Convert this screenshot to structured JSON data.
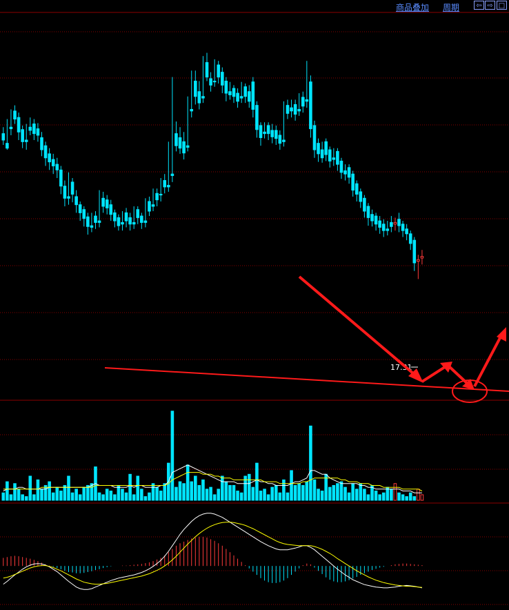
{
  "toolbar": {
    "overlay_label": "商品叠加",
    "period_label": "周期",
    "nav_left": "⇦",
    "nav_right": "⇨",
    "nav_max": "□"
  },
  "colors": {
    "background": "#000000",
    "grid": "#8b0000",
    "up": "#ff3b3b",
    "down": "#00e5ff",
    "ma_white": "#ffffff",
    "ma_yellow": "#ffff00",
    "annotation": "#ff1a1a"
  },
  "chart_data": [
    {
      "type": "candlestick",
      "price_labels": [
        {
          "x": 606,
          "value": 17.31
        }
      ],
      "ylim": [
        16.9,
        21.7
      ],
      "candles": [
        [
          20.2,
          20.28,
          20.12,
          20.06
        ],
        [
          20.08,
          20.38,
          20.02,
          20.0
        ],
        [
          20.28,
          20.5,
          20.26,
          20.18
        ],
        [
          20.48,
          20.55,
          20.38,
          20.32
        ],
        [
          20.4,
          20.46,
          20.22,
          20.12
        ],
        [
          20.25,
          20.3,
          20.1,
          20.02
        ],
        [
          20.12,
          20.32,
          20.1,
          20.0
        ],
        [
          20.28,
          20.4,
          20.24,
          20.18
        ],
        [
          20.32,
          20.38,
          20.2,
          20.12
        ],
        [
          20.26,
          20.33,
          20.18,
          20.1
        ],
        [
          20.15,
          20.22,
          20.0,
          19.92
        ],
        [
          20.05,
          20.1,
          19.9,
          19.8
        ],
        [
          19.95,
          20.02,
          19.85,
          19.75
        ],
        [
          19.88,
          19.95,
          19.8,
          19.7
        ],
        [
          19.82,
          19.9,
          19.75,
          19.65
        ],
        [
          19.75,
          19.8,
          19.55,
          19.45
        ],
        [
          19.55,
          19.62,
          19.4,
          19.3
        ],
        [
          19.42,
          19.72,
          19.4,
          19.32
        ],
        [
          19.6,
          19.65,
          19.45,
          19.35
        ],
        [
          19.42,
          19.5,
          19.32,
          19.22
        ],
        [
          19.32,
          19.36,
          19.22,
          19.12
        ],
        [
          19.26,
          19.3,
          19.15,
          19.05
        ],
        [
          19.17,
          19.22,
          19.05,
          18.95
        ],
        [
          19.06,
          19.22,
          19.04,
          18.98
        ],
        [
          19.18,
          19.24,
          19.1,
          19.02
        ],
        [
          19.12,
          19.5,
          19.1,
          19.04
        ],
        [
          19.4,
          19.48,
          19.3,
          19.22
        ],
        [
          19.38,
          19.44,
          19.28,
          19.2
        ],
        [
          19.32,
          19.38,
          19.2,
          19.12
        ],
        [
          19.22,
          19.26,
          19.12,
          19.04
        ],
        [
          19.16,
          19.2,
          19.06,
          19.0
        ],
        [
          19.1,
          19.24,
          19.08,
          19.0
        ],
        [
          19.22,
          19.28,
          19.12,
          19.04
        ],
        [
          19.16,
          19.22,
          19.08,
          19.0
        ],
        [
          19.1,
          19.3,
          19.08,
          19.02
        ],
        [
          19.26,
          19.3,
          19.16,
          19.08
        ],
        [
          19.18,
          19.22,
          19.1,
          19.02
        ],
        [
          19.12,
          19.4,
          19.1,
          19.04
        ],
        [
          19.36,
          19.42,
          19.24,
          19.18
        ],
        [
          19.32,
          19.52,
          19.3,
          19.24
        ],
        [
          19.46,
          19.52,
          19.38,
          19.3
        ],
        [
          19.45,
          19.65,
          19.44,
          19.36
        ],
        [
          19.62,
          19.7,
          19.54,
          19.46
        ],
        [
          19.56,
          20.1,
          19.54,
          19.48
        ],
        [
          19.7,
          20.9,
          19.68,
          19.6
        ],
        [
          20.2,
          20.35,
          20.05,
          19.98
        ],
        [
          20.15,
          20.28,
          20.02,
          19.95
        ],
        [
          20.1,
          20.22,
          19.96,
          19.88
        ],
        [
          20.05,
          20.66,
          20.03,
          19.98
        ],
        [
          20.5,
          20.98,
          20.48,
          20.4
        ],
        [
          20.85,
          20.98,
          20.66,
          20.56
        ],
        [
          20.72,
          20.85,
          20.58,
          20.5
        ],
        [
          20.66,
          21.16,
          20.64,
          20.58
        ],
        [
          21.08,
          21.2,
          20.9,
          20.85
        ],
        [
          20.88,
          20.96,
          20.8,
          20.72
        ],
        [
          20.85,
          21.12,
          20.84,
          20.78
        ],
        [
          21.05,
          21.1,
          20.9,
          20.82
        ],
        [
          20.96,
          21.02,
          20.8,
          20.7
        ],
        [
          20.85,
          20.9,
          20.7,
          20.6
        ],
        [
          20.72,
          20.84,
          20.68,
          20.62
        ],
        [
          20.76,
          20.8,
          20.66,
          20.58
        ],
        [
          20.7,
          20.76,
          20.6,
          20.52
        ],
        [
          20.66,
          20.84,
          20.64,
          20.58
        ],
        [
          20.78,
          20.82,
          20.66,
          20.58
        ],
        [
          20.72,
          20.8,
          20.6,
          20.52
        ],
        [
          20.84,
          20.9,
          20.5,
          20.4
        ],
        [
          20.55,
          20.6,
          20.25,
          20.15
        ],
        [
          20.3,
          20.34,
          20.15,
          20.05
        ],
        [
          20.22,
          20.34,
          20.2,
          20.14
        ],
        [
          20.3,
          20.34,
          20.2,
          20.12
        ],
        [
          20.24,
          20.32,
          20.16,
          20.08
        ],
        [
          20.24,
          20.3,
          20.14,
          20.06
        ],
        [
          20.18,
          20.24,
          20.08,
          20.0
        ],
        [
          20.12,
          20.6,
          20.1,
          20.04
        ],
        [
          20.55,
          20.62,
          20.45,
          20.38
        ],
        [
          20.52,
          20.62,
          20.48,
          20.4
        ],
        [
          20.56,
          20.62,
          20.44,
          20.36
        ],
        [
          20.5,
          20.7,
          20.48,
          20.42
        ],
        [
          20.65,
          20.72,
          20.54,
          20.46
        ],
        [
          20.62,
          21.1,
          20.6,
          20.52
        ],
        [
          20.84,
          20.92,
          20.26,
          20.15
        ],
        [
          20.3,
          20.36,
          20.0,
          19.9
        ],
        [
          20.08,
          20.14,
          19.95,
          19.85
        ],
        [
          20.0,
          20.1,
          19.9,
          19.84
        ],
        [
          20.1,
          20.14,
          19.94,
          19.86
        ],
        [
          20.0,
          20.04,
          19.86,
          19.78
        ],
        [
          19.9,
          20.02,
          19.88,
          19.8
        ],
        [
          19.98,
          20.02,
          19.82,
          19.74
        ],
        [
          19.86,
          19.9,
          19.72,
          19.64
        ],
        [
          19.74,
          19.82,
          19.7,
          19.62
        ],
        [
          19.78,
          19.82,
          19.66,
          19.58
        ],
        [
          19.7,
          19.74,
          19.5,
          19.42
        ],
        [
          19.58,
          19.62,
          19.45,
          19.36
        ],
        [
          19.48,
          19.52,
          19.36,
          19.28
        ],
        [
          19.4,
          19.44,
          19.24,
          19.16
        ],
        [
          19.3,
          19.34,
          19.16,
          19.06
        ],
        [
          19.2,
          19.26,
          19.12,
          19.05
        ],
        [
          19.18,
          19.22,
          19.08,
          19.0
        ],
        [
          19.12,
          19.18,
          19.04,
          18.96
        ],
        [
          19.08,
          19.14,
          19.0,
          18.92
        ],
        [
          19.02,
          19.12,
          19.0,
          18.94
        ],
        [
          19.1,
          19.18,
          19.05,
          18.98
        ],
        [
          19.08,
          19.16,
          19.1,
          19.0
        ],
        [
          19.14,
          19.22,
          19.06,
          18.98
        ],
        [
          19.08,
          19.12,
          19.0,
          18.92
        ],
        [
          19.02,
          19.08,
          18.96,
          18.88
        ],
        [
          18.96,
          19.0,
          18.84,
          18.76
        ],
        [
          18.88,
          18.92,
          18.6,
          18.5
        ],
        [
          18.62,
          18.7,
          18.64,
          18.4
        ],
        [
          18.66,
          18.76,
          18.68,
          18.58
        ]
      ]
    },
    {
      "type": "bar",
      "volumes": [
        4,
        10,
        3,
        9,
        6,
        3,
        2,
        13,
        3,
        11,
        6,
        8,
        10,
        4,
        7,
        5,
        8,
        13,
        4,
        6,
        3,
        7,
        8,
        9,
        18,
        4,
        3,
        6,
        5,
        3,
        8,
        6,
        4,
        14,
        3,
        13,
        6,
        2,
        4,
        9,
        7,
        5,
        9,
        20,
        48,
        7,
        10,
        9,
        19,
        10,
        13,
        8,
        11,
        6,
        7,
        3,
        6,
        13,
        10,
        8,
        8,
        5,
        4,
        13,
        14,
        7,
        20,
        5,
        6,
        3,
        7,
        8,
        4,
        11,
        4,
        16,
        8,
        9,
        8,
        10,
        40,
        11,
        6,
        5,
        14,
        7,
        8,
        9,
        10,
        7,
        4,
        9,
        6,
        9,
        6,
        3,
        8,
        5,
        3,
        4,
        7,
        6,
        9,
        4,
        3,
        2,
        4,
        2,
        6,
        3
      ],
      "ma_white": [
        5,
        6,
        6,
        6,
        7,
        7,
        6,
        6,
        6,
        6,
        6,
        6,
        7,
        7,
        7,
        7,
        7,
        7,
        7,
        7,
        7,
        7,
        7,
        8,
        9,
        8,
        8,
        8,
        8,
        7,
        7,
        7,
        7,
        8,
        7,
        8,
        8,
        7,
        7,
        7,
        7,
        8,
        8,
        10,
        15,
        16,
        17,
        18,
        19,
        18,
        17,
        16,
        15,
        14,
        13,
        12,
        11,
        10,
        10,
        10,
        10,
        9,
        9,
        9,
        9,
        10,
        11,
        10,
        10,
        9,
        9,
        8,
        8,
        8,
        8,
        9,
        10,
        10,
        11,
        12,
        16,
        16,
        15,
        14,
        14,
        12,
        11,
        10,
        9,
        9,
        9,
        9,
        9,
        8,
        8,
        7,
        7,
        6,
        6,
        6,
        6,
        6,
        6,
        6,
        5,
        5,
        5,
        4,
        4,
        4
      ],
      "ma_yellow": [
        6,
        6,
        6,
        6,
        6,
        6,
        6,
        6,
        6,
        6,
        7,
        7,
        7,
        7,
        7,
        7,
        7,
        7,
        7,
        7,
        7,
        7,
        7,
        7,
        8,
        8,
        8,
        8,
        8,
        8,
        8,
        8,
        8,
        8,
        8,
        8,
        8,
        8,
        8,
        8,
        8,
        8,
        8,
        9,
        11,
        12,
        13,
        14,
        15,
        15,
        15,
        15,
        14,
        14,
        14,
        13,
        13,
        12,
        12,
        12,
        11,
        11,
        11,
        11,
        11,
        11,
        11,
        11,
        10,
        10,
        10,
        10,
        9,
        9,
        9,
        9,
        9,
        9,
        10,
        10,
        11,
        12,
        12,
        12,
        12,
        12,
        12,
        12,
        11,
        11,
        10,
        10,
        10,
        9,
        9,
        9,
        8,
        8,
        8,
        7,
        7,
        7,
        7,
        7,
        6,
        6,
        6,
        6,
        6,
        5
      ],
      "ylim": [
        0,
        52
      ]
    },
    {
      "type": "macd",
      "hist": [
        0.2,
        0.22,
        0.24,
        0.25,
        0.24,
        0.22,
        0.2,
        0.18,
        0.15,
        0.12,
        0.08,
        0.04,
        0.01,
        -0.02,
        -0.05,
        -0.08,
        -0.12,
        -0.15,
        -0.16,
        -0.18,
        -0.18,
        -0.17,
        -0.15,
        -0.13,
        -0.1,
        -0.08,
        -0.05,
        -0.03,
        -0.01,
        0.0,
        0.0,
        0.01,
        0.01,
        0.02,
        0.03,
        0.04,
        0.05,
        0.07,
        0.09,
        0.12,
        0.16,
        0.2,
        0.26,
        0.34,
        0.42,
        0.5,
        0.56,
        0.6,
        0.64,
        0.68,
        0.7,
        0.72,
        0.72,
        0.7,
        0.66,
        0.62,
        0.56,
        0.5,
        0.42,
        0.34,
        0.26,
        0.18,
        0.1,
        0.02,
        -0.06,
        -0.14,
        -0.22,
        -0.3,
        -0.36,
        -0.4,
        -0.42,
        -0.42,
        -0.4,
        -0.36,
        -0.3,
        -0.22,
        -0.14,
        -0.06,
        0.02,
        0.06,
        0.04,
        -0.04,
        -0.12,
        -0.2,
        -0.28,
        -0.34,
        -0.38,
        -0.4,
        -0.4,
        -0.38,
        -0.35,
        -0.31,
        -0.27,
        -0.22,
        -0.18,
        -0.14,
        -0.1,
        -0.07,
        -0.04,
        -0.02,
        0.0,
        0.02,
        0.04,
        0.05,
        0.06,
        0.06,
        0.05,
        0.04,
        0.03,
        0.02
      ],
      "dif": [
        -0.45,
        -0.38,
        -0.3,
        -0.22,
        -0.15,
        -0.08,
        -0.02,
        0.02,
        0.05,
        0.06,
        0.05,
        0.02,
        -0.02,
        -0.08,
        -0.14,
        -0.22,
        -0.3,
        -0.38,
        -0.45,
        -0.52,
        -0.56,
        -0.58,
        -0.58,
        -0.56,
        -0.52,
        -0.48,
        -0.44,
        -0.4,
        -0.36,
        -0.33,
        -0.3,
        -0.28,
        -0.26,
        -0.24,
        -0.22,
        -0.19,
        -0.16,
        -0.12,
        -0.07,
        -0.01,
        0.06,
        0.14,
        0.24,
        0.36,
        0.5,
        0.64,
        0.78,
        0.9,
        1.0,
        1.1,
        1.18,
        1.24,
        1.28,
        1.3,
        1.3,
        1.28,
        1.24,
        1.2,
        1.14,
        1.08,
        1.02,
        0.96,
        0.9,
        0.84,
        0.78,
        0.72,
        0.66,
        0.6,
        0.55,
        0.5,
        0.46,
        0.42,
        0.4,
        0.4,
        0.4,
        0.42,
        0.44,
        0.47,
        0.5,
        0.5,
        0.46,
        0.4,
        0.32,
        0.24,
        0.16,
        0.08,
        0.0,
        -0.08,
        -0.15,
        -0.22,
        -0.28,
        -0.34,
        -0.38,
        -0.42,
        -0.46,
        -0.48,
        -0.5,
        -0.52,
        -0.53,
        -0.54,
        -0.54,
        -0.53,
        -0.52,
        -0.5,
        -0.49,
        -0.48,
        -0.49,
        -0.5,
        -0.52,
        -0.54
      ],
      "dea": [
        -0.3,
        -0.28,
        -0.25,
        -0.21,
        -0.17,
        -0.13,
        -0.09,
        -0.05,
        -0.02,
        0.0,
        0.01,
        0.01,
        -0.01,
        -0.04,
        -0.08,
        -0.12,
        -0.17,
        -0.22,
        -0.27,
        -0.32,
        -0.36,
        -0.4,
        -0.42,
        -0.44,
        -0.45,
        -0.45,
        -0.44,
        -0.43,
        -0.41,
        -0.39,
        -0.37,
        -0.35,
        -0.33,
        -0.31,
        -0.29,
        -0.27,
        -0.25,
        -0.22,
        -0.19,
        -0.15,
        -0.11,
        -0.06,
        0.0,
        0.07,
        0.15,
        0.24,
        0.34,
        0.44,
        0.54,
        0.63,
        0.72,
        0.8,
        0.87,
        0.93,
        0.98,
        1.02,
        1.05,
        1.07,
        1.08,
        1.08,
        1.07,
        1.05,
        1.03,
        1.0,
        0.96,
        0.92,
        0.87,
        0.82,
        0.77,
        0.72,
        0.67,
        0.62,
        0.58,
        0.55,
        0.53,
        0.52,
        0.51,
        0.5,
        0.5,
        0.5,
        0.5,
        0.48,
        0.45,
        0.41,
        0.36,
        0.31,
        0.25,
        0.18,
        0.12,
        0.06,
        0.0,
        -0.06,
        -0.12,
        -0.17,
        -0.22,
        -0.27,
        -0.31,
        -0.35,
        -0.38,
        -0.41,
        -0.43,
        -0.45,
        -0.47,
        -0.48,
        -0.49,
        -0.5,
        -0.5,
        -0.51,
        -0.52,
        -0.53
      ],
      "ylim": [
        -0.95,
        1.45
      ]
    }
  ]
}
